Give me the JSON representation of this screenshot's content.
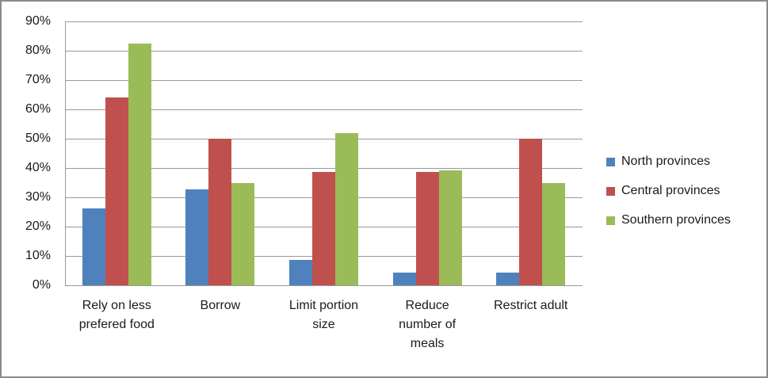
{
  "chart_data": {
    "type": "bar",
    "title": "",
    "categories": [
      "Rely on less\nprefered food",
      "Borrow",
      "Limit portion\nsize",
      "Reduce\nnumber of\nmeals",
      "Restrict adult"
    ],
    "series": [
      {
        "name": "North provinces",
        "color": "#4F81BD",
        "values": [
          26.3,
          32.6,
          8.6,
          4.3,
          4.3
        ]
      },
      {
        "name": "Central provinces",
        "color": "#C0504D",
        "values": [
          64.0,
          50.0,
          38.7,
          38.7,
          50.0
        ]
      },
      {
        "name": "Southern provinces",
        "color": "#9BBB59",
        "values": [
          82.5,
          34.8,
          52.0,
          39.2,
          34.8
        ]
      }
    ],
    "y_axis": {
      "min": 0,
      "max": 90,
      "step": 10,
      "tick_labels": [
        "0%",
        "10%",
        "20%",
        "30%",
        "40%",
        "50%",
        "60%",
        "70%",
        "80%",
        "90%"
      ]
    },
    "xlabel": "",
    "ylabel": "",
    "grid": true,
    "legend_position": "right"
  },
  "colors": {
    "gridline": "#9a9a9a",
    "axis": "#9a9a9a",
    "frame_border": "#8a8a8a",
    "background": "#ffffff",
    "text": "#1a1a1a"
  }
}
